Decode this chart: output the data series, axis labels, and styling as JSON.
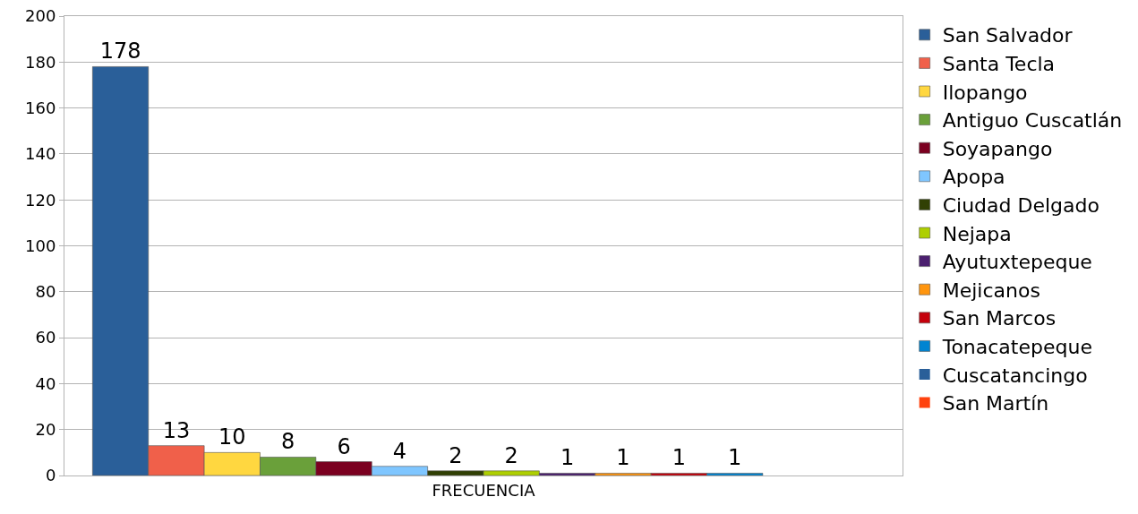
{
  "chart_data": {
    "type": "bar",
    "categories": [
      "FRECUENCIA"
    ],
    "series": [
      {
        "name": "San Salvador",
        "color": "#2a5f99",
        "values": [
          178
        ]
      },
      {
        "name": "Santa Tecla",
        "color": "#f0604a",
        "values": [
          13
        ]
      },
      {
        "name": "Ilopango",
        "color": "#ffd740",
        "values": [
          10
        ]
      },
      {
        "name": "Antiguo Cuscatlán",
        "color": "#6aa03a",
        "values": [
          8
        ]
      },
      {
        "name": "Soyapango",
        "color": "#7b0020",
        "values": [
          6
        ]
      },
      {
        "name": "Apopa",
        "color": "#7fc6ff",
        "values": [
          4
        ]
      },
      {
        "name": "Ciudad Delgado",
        "color": "#314004",
        "values": [
          2
        ]
      },
      {
        "name": "Nejapa",
        "color": "#aecf00",
        "values": [
          2
        ]
      },
      {
        "name": "Ayutuxtepeque",
        "color": "#4b1f6f",
        "values": [
          1
        ]
      },
      {
        "name": "Mejicanos",
        "color": "#ff950e",
        "values": [
          1
        ]
      },
      {
        "name": "San Marcos",
        "color": "#c5000b",
        "values": [
          1
        ]
      },
      {
        "name": "Tonacatepeque",
        "color": "#0084d1",
        "values": [
          1
        ]
      },
      {
        "name": "Cuscatancingo",
        "color": "#2a5f99",
        "values": [
          0
        ]
      },
      {
        "name": "San Martín",
        "color": "#ff420e",
        "values": [
          0
        ]
      }
    ],
    "value_labels": [
      "178",
      "13",
      "10",
      "8",
      "6",
      "4",
      "2",
      "2",
      "1",
      "1",
      "1",
      "1",
      null,
      null
    ],
    "ylim": [
      0,
      200
    ],
    "yticks": [
      0,
      20,
      40,
      60,
      80,
      100,
      120,
      140,
      160,
      180,
      200
    ],
    "grid": "y",
    "legend": "right"
  }
}
